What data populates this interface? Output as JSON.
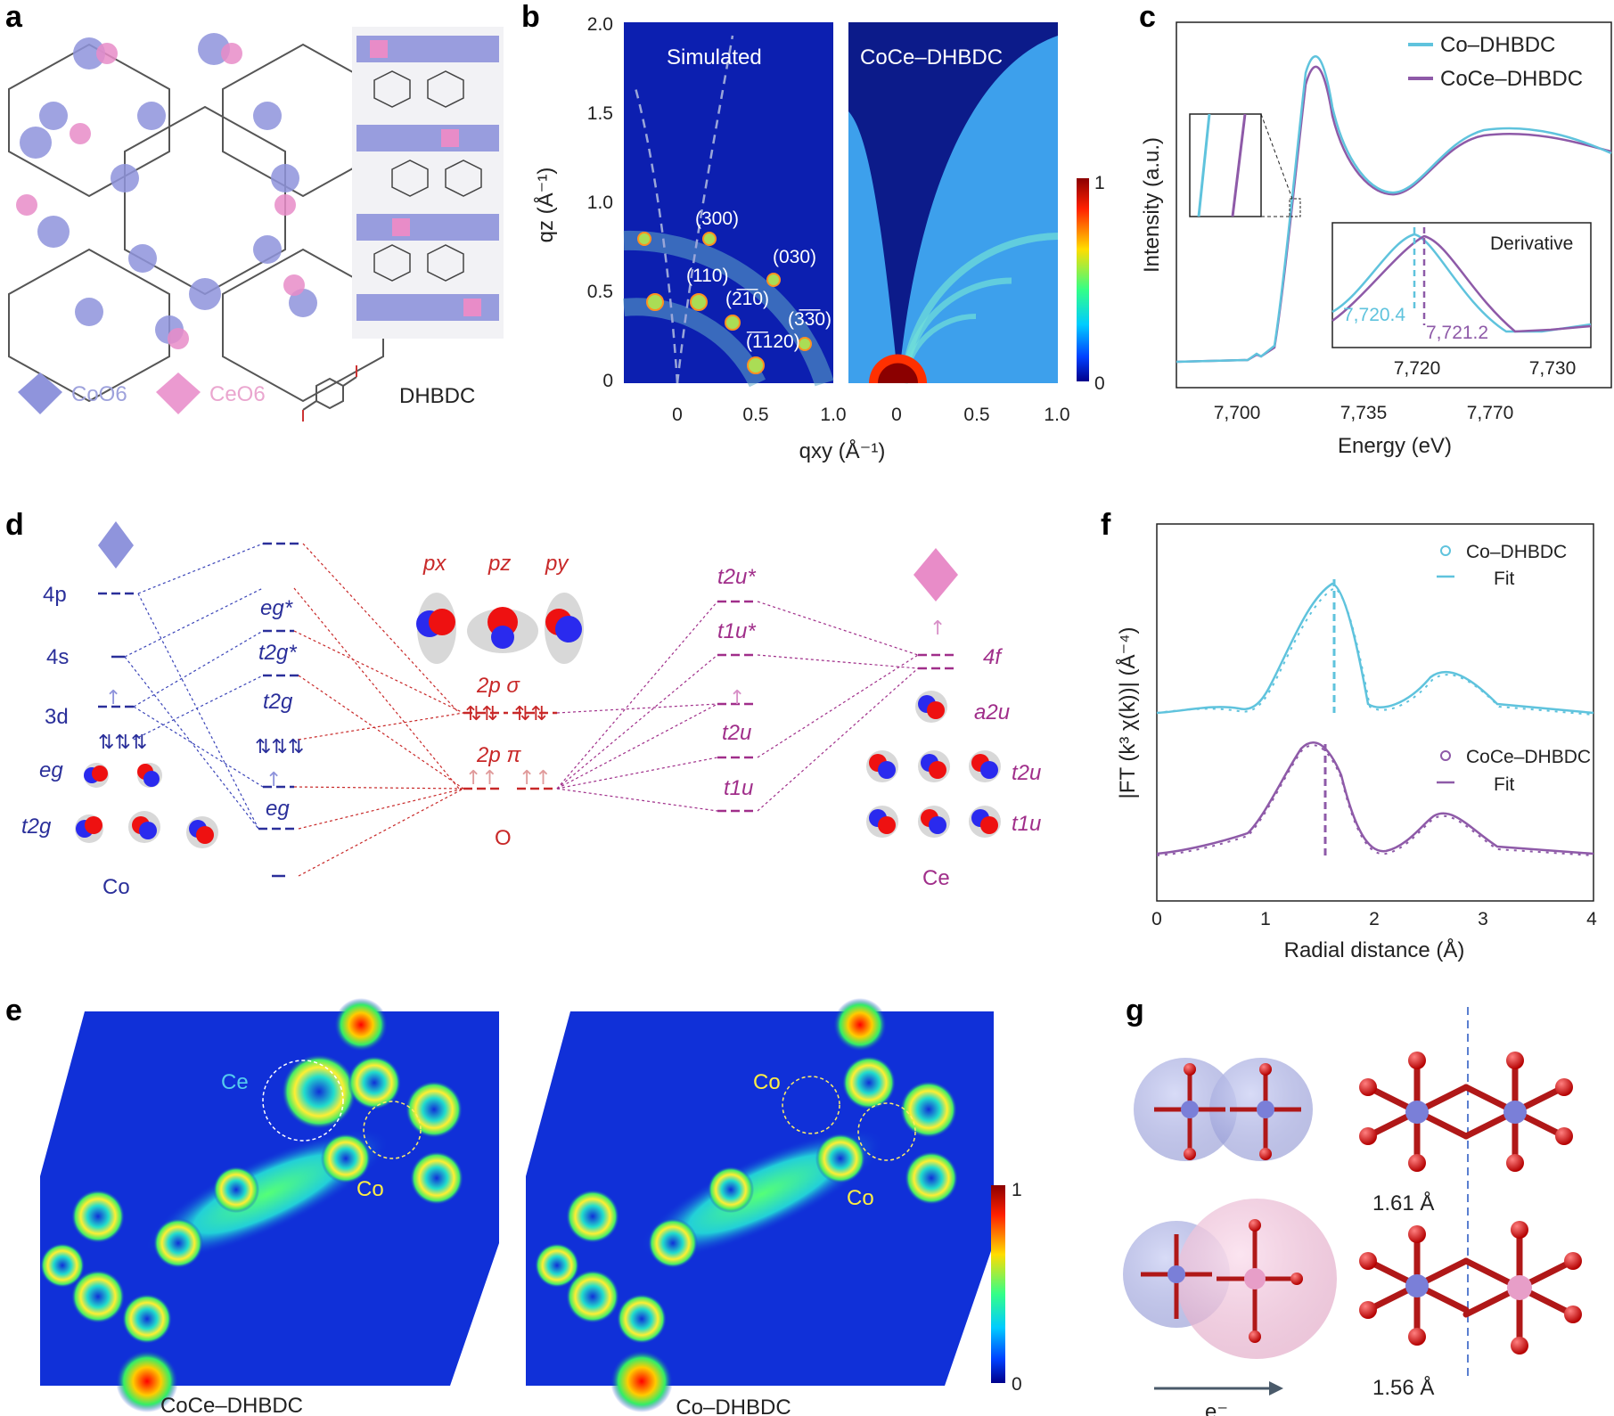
{
  "panels": {
    "a": {
      "label": "a",
      "legend": [
        "CoO6",
        "CeO6",
        "DHBDC"
      ],
      "colors": {
        "co": "#7a7fd8",
        "ce": "#e27ac0"
      }
    },
    "b": {
      "label": "b",
      "left_title": "Simulated",
      "right_title": "CoCe–DHBDC",
      "ylabel": "qz (Å⁻¹)",
      "xlabel": "qxy (Å⁻¹)",
      "yticks": [
        "2.0",
        "1.5",
        "1.0",
        "0.5",
        "0"
      ],
      "xticks_left": [
        "0",
        "0.5",
        "1.0"
      ],
      "xticks_right": [
        "0",
        "0.5",
        "1.0"
      ],
      "reflections": [
        "(300)",
        "(030)",
        "(110)",
        "(2̅1̅0)",
        "(3̅3̅0)",
        "(̅1̅120)"
      ],
      "colorbar": [
        "1",
        "0"
      ]
    },
    "c": {
      "label": "c",
      "ylabel": "Intensity (a.u.)",
      "xlabel": "Energy (eV)",
      "xticks": [
        "7,700",
        "7,735",
        "7,770"
      ],
      "legend": [
        "Co–DHBDC",
        "CoCe–DHBDC"
      ],
      "inset_title": "Derivative",
      "inset_values": [
        "7,720.4",
        "7,721.2"
      ],
      "inset_xticks": [
        "7,720",
        "7,730"
      ],
      "colors": {
        "co": "#5fc3dd",
        "coce": "#8e5aa8"
      }
    },
    "d": {
      "label": "d",
      "co_levels": [
        "4p",
        "4s",
        "3d",
        "eg",
        "t2g"
      ],
      "co_name": "Co",
      "mo_levels": [
        "eg*",
        "t2g*",
        "t2g",
        "eg"
      ],
      "o_orbitals": [
        "px",
        "pz",
        "py"
      ],
      "o_levels": [
        "2p σ",
        "2p π"
      ],
      "o_name": "O",
      "ce_mo_levels": [
        "t2u*",
        "t1u*",
        "t2u",
        "t1u"
      ],
      "ce_levels": [
        "4f",
        "a2u",
        "t2u",
        "t1u"
      ],
      "ce_name": "Ce"
    },
    "e": {
      "label": "e",
      "left_caption": "CoCe–DHBDC",
      "right_caption": "Co–DHBDC",
      "left_atoms": [
        "Ce",
        "Co"
      ],
      "right_atoms": [
        "Co",
        "Co"
      ],
      "colorbar": [
        "1",
        "0"
      ]
    },
    "f": {
      "label": "f",
      "ylabel": "|FT (k³ χ(k))| (Å⁻⁴)",
      "xlabel": "Radial distance (Å)",
      "xticks": [
        "0",
        "1",
        "2",
        "3",
        "4"
      ],
      "legend_top": [
        "Co–DHBDC",
        "Fit"
      ],
      "legend_bottom": [
        "CoCe–DHBDC",
        "Fit"
      ]
    },
    "g": {
      "label": "g",
      "distances": [
        "1.61 Å",
        "1.56 Å"
      ],
      "arrow_label": "e⁻"
    }
  }
}
